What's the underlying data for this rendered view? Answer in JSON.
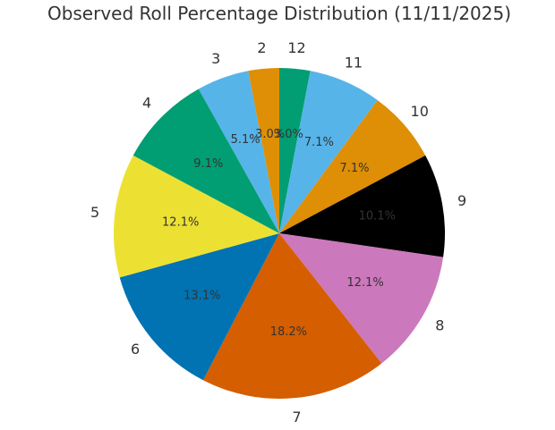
{
  "chart_data": {
    "type": "pie",
    "title": "Observed Roll Percentage Distribution (11/11/2025)",
    "categories": [
      "12",
      "11",
      "10",
      "9",
      "8",
      "7",
      "6",
      "5",
      "4",
      "3",
      "2"
    ],
    "values": [
      3.0,
      7.1,
      7.1,
      10.1,
      12.1,
      18.2,
      13.1,
      12.1,
      9.1,
      5.1,
      3.0
    ],
    "percent_labels": [
      "3.0%",
      "7.1%",
      "7.1%",
      "10.1%",
      "12.1%",
      "18.2%",
      "13.1%",
      "12.1%",
      "9.1%",
      "5.1%",
      "3.0%"
    ],
    "colors": [
      "#029e73",
      "#56b4e9",
      "#de8f05",
      "#000000",
      "#cc78bc",
      "#d55e00",
      "#0173b2",
      "#ece133",
      "#029e73",
      "#56b4e9",
      "#de8f05"
    ],
    "start_angle": "12 o'clock",
    "direction": "clockwise"
  }
}
